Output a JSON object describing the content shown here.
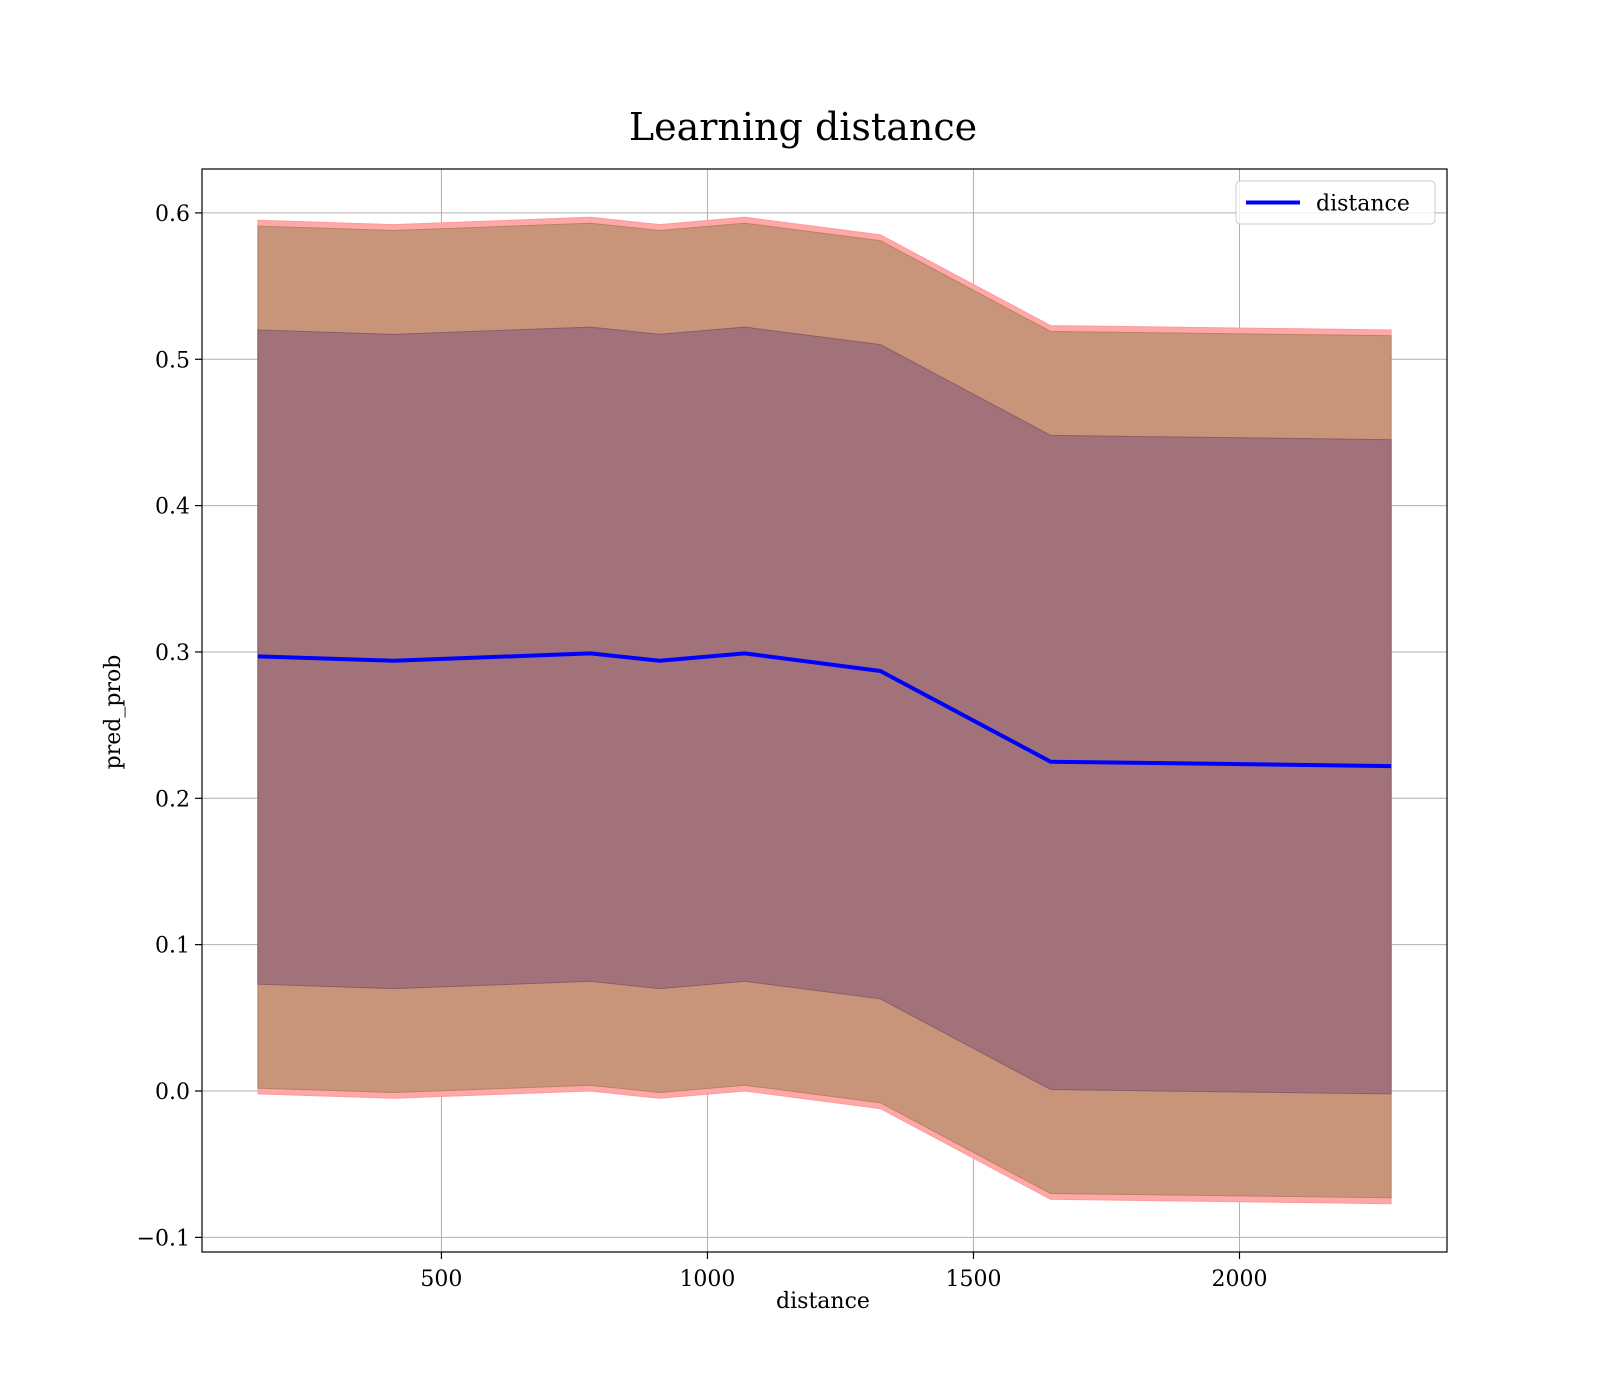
{
  "chart_data": {
    "type": "line",
    "title": "Learning distance",
    "xlabel": "distance",
    "ylabel": "pred_prob",
    "xlim": [
      50,
      2390
    ],
    "ylim": [
      -0.11,
      0.63
    ],
    "xticks": [
      500,
      1000,
      1500,
      2000
    ],
    "yticks": [
      -0.1,
      0.0,
      0.1,
      0.2,
      0.3,
      0.4,
      0.5,
      0.6
    ],
    "grid": true,
    "legend_position": "top-right",
    "colors": {
      "line": "#0000ff",
      "outer_band": "#ffa8a8",
      "middle_band": "#c8957a",
      "inner_band": "#a1727a",
      "grid": "#b0b0b0"
    },
    "x": [
      155,
      410,
      780,
      910,
      1070,
      1325,
      1645,
      2285
    ],
    "series": [
      {
        "name": "distance",
        "values": [
          0.297,
          0.294,
          0.299,
          0.294,
          0.299,
          0.287,
          0.225,
          0.222
        ]
      }
    ],
    "bands": [
      {
        "id": "outer",
        "upper": [
          0.595,
          0.592,
          0.597,
          0.592,
          0.597,
          0.585,
          0.523,
          0.52
        ],
        "lower": [
          -0.002,
          -0.005,
          0.0,
          -0.005,
          0.0,
          -0.012,
          -0.074,
          -0.077
        ]
      },
      {
        "id": "middle",
        "upper": [
          0.591,
          0.588,
          0.593,
          0.588,
          0.593,
          0.581,
          0.519,
          0.516
        ],
        "lower": [
          0.002,
          -0.001,
          0.004,
          -0.001,
          0.004,
          -0.008,
          -0.07,
          -0.073
        ]
      },
      {
        "id": "inner",
        "upper": [
          0.52,
          0.517,
          0.522,
          0.517,
          0.522,
          0.51,
          0.448,
          0.445
        ],
        "lower": [
          0.073,
          0.07,
          0.075,
          0.07,
          0.075,
          0.063,
          0.001,
          -0.002
        ]
      }
    ]
  }
}
